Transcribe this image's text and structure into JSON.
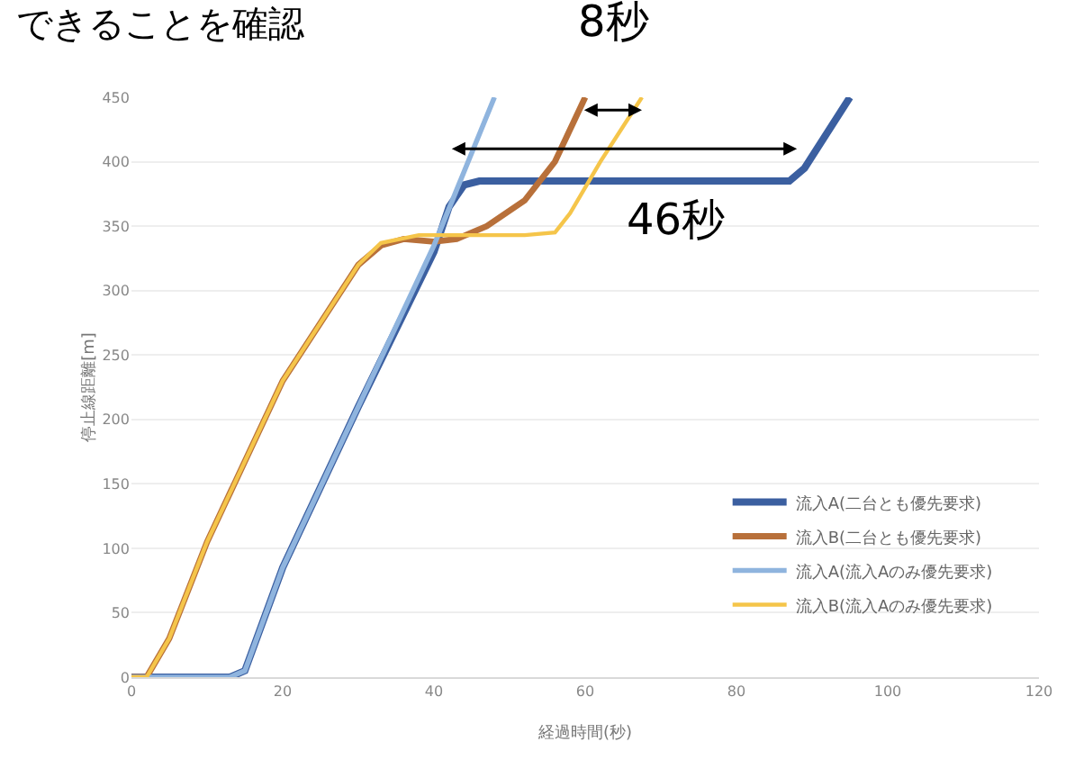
{
  "chart_data": {
    "type": "line",
    "xlabel": "経過時間(秒)",
    "ylabel": "停止線距離[m]",
    "xlim": [
      0,
      120
    ],
    "xticks": [
      0,
      20,
      40,
      60,
      80,
      100,
      120
    ],
    "ylim": [
      0,
      450
    ],
    "yticks": [
      0,
      50,
      100,
      150,
      200,
      250,
      300,
      350,
      400,
      450
    ],
    "grid": "y",
    "legend": "bottom right",
    "marker": "none",
    "line_style": "solid",
    "annotations": [
      "できることを確認",
      "8秒",
      "46秒"
    ],
    "series": [
      {
        "name": "流入A(二台とも優先要求)",
        "color": "#3b5fa0",
        "x": [
          0,
          13,
          15,
          20,
          30,
          40,
          42,
          44,
          46,
          87,
          89,
          95
        ],
        "values": [
          0,
          0,
          5,
          85,
          210,
          330,
          365,
          382,
          385,
          385,
          395,
          450
        ]
      },
      {
        "name": "流入B(二台とも優先要求)",
        "color": "#b8703a",
        "x": [
          0,
          2,
          5,
          10,
          20,
          30,
          33,
          36,
          40,
          43,
          47,
          52,
          56,
          60
        ],
        "values": [
          0,
          0,
          30,
          105,
          230,
          320,
          335,
          340,
          338,
          340,
          350,
          370,
          400,
          450
        ]
      },
      {
        "name": "流入A(流入Aのみ優先要求)",
        "color": "#8fb4de",
        "x": [
          0,
          13,
          15,
          20,
          30,
          40,
          48
        ],
        "values": [
          0,
          0,
          5,
          85,
          210,
          335,
          450
        ]
      },
      {
        "name": "流入B(流入Aのみ優先要求)",
        "color": "#f5c54a",
        "x": [
          0,
          2,
          5,
          10,
          20,
          30,
          33,
          38,
          44,
          52,
          56,
          58,
          62,
          67.5
        ],
        "values": [
          0,
          0,
          30,
          105,
          230,
          320,
          337,
          343,
          343,
          343,
          345,
          360,
          400,
          450
        ]
      }
    ]
  }
}
